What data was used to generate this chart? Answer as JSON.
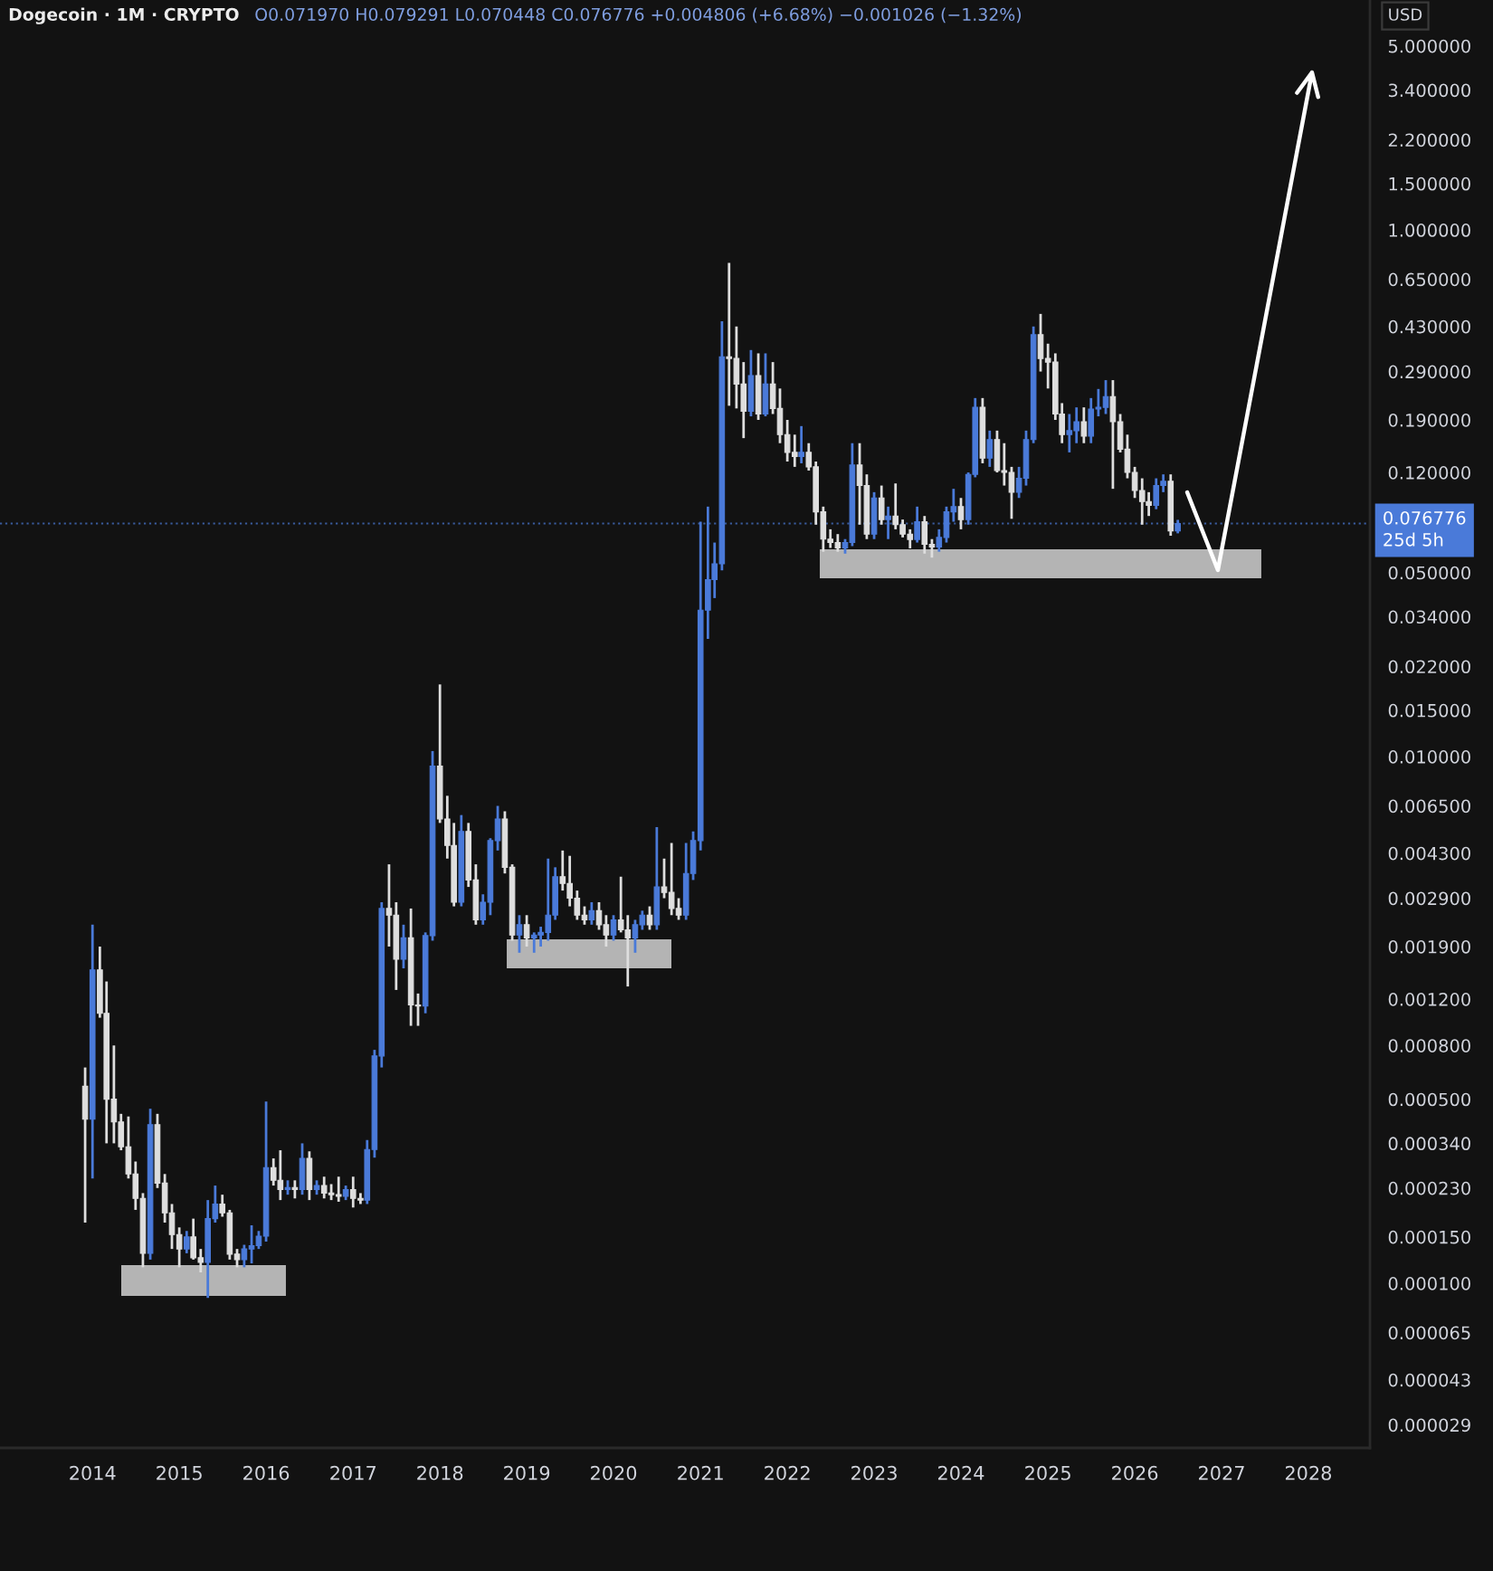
{
  "chart_data": {
    "type": "candlestick",
    "title": "Dogecoin · 1M · CRYPTO",
    "subtitle": "O0.071970 H0.079291 L0.070448 C0.076776 +0.004806 (+6.68%) −0.001026 (−1.32%)",
    "ylabel": "USD",
    "x": [
      "2013-12",
      "2014-01",
      "2014-02",
      "2014-03",
      "2014-04",
      "2014-05",
      "2014-06",
      "2014-07",
      "2014-08",
      "2014-09",
      "2014-10",
      "2014-11",
      "2014-12",
      "2015-01",
      "2015-02",
      "2015-03",
      "2015-04",
      "2015-05",
      "2015-06",
      "2015-07",
      "2015-08",
      "2015-09",
      "2015-10",
      "2015-11",
      "2015-12",
      "2016-01",
      "2016-02",
      "2016-03",
      "2016-04",
      "2016-05",
      "2016-06",
      "2016-07",
      "2016-08",
      "2016-09",
      "2016-10",
      "2016-11",
      "2016-12",
      "2017-01",
      "2017-02",
      "2017-03",
      "2017-04",
      "2017-05",
      "2017-06",
      "2017-07",
      "2017-08",
      "2017-09",
      "2017-10",
      "2017-11",
      "2017-12",
      "2018-01",
      "2018-02",
      "2018-03",
      "2018-04",
      "2018-05",
      "2018-06",
      "2018-07",
      "2018-08",
      "2018-09",
      "2018-10",
      "2018-11",
      "2018-12",
      "2019-01",
      "2019-02",
      "2019-03",
      "2019-04",
      "2019-05",
      "2019-06",
      "2019-07",
      "2019-08",
      "2019-09",
      "2019-10",
      "2019-11",
      "2019-12",
      "2020-01",
      "2020-02",
      "2020-03",
      "2020-04",
      "2020-05",
      "2020-06",
      "2020-07",
      "2020-08",
      "2020-09",
      "2020-10",
      "2020-11",
      "2020-12",
      "2021-01",
      "2021-02",
      "2021-03",
      "2021-04",
      "2021-05",
      "2021-06",
      "2021-07",
      "2021-08",
      "2021-09",
      "2021-10",
      "2021-11",
      "2021-12",
      "2022-01",
      "2022-02",
      "2022-03",
      "2022-04",
      "2022-05",
      "2022-06",
      "2022-07",
      "2022-08",
      "2022-09",
      "2022-10",
      "2022-11",
      "2022-12",
      "2023-01",
      "2023-02",
      "2023-03",
      "2023-04",
      "2023-05",
      "2023-06",
      "2023-07",
      "2023-08",
      "2023-09",
      "2023-10",
      "2023-11",
      "2023-12",
      "2024-01",
      "2024-02",
      "2024-03",
      "2024-04",
      "2024-05",
      "2024-06",
      "2024-07",
      "2024-08",
      "2024-09",
      "2024-10",
      "2024-11",
      "2024-12",
      "2025-01",
      "2025-02",
      "2025-03",
      "2025-04",
      "2025-05",
      "2025-06",
      "2025-07",
      "2025-08",
      "2025-09",
      "2025-10",
      "2025-11",
      "2025-12",
      "2026-01",
      "2026-02",
      "2026-03",
      "2026-04",
      "2026-05",
      "2026-06",
      "2026-07"
    ],
    "ohlc": [
      [
        0.00056,
        0.00066,
        0.00017,
        0.00042
      ],
      [
        0.00042,
        0.0023,
        0.00025,
        0.00155
      ],
      [
        0.00155,
        0.0019,
        0.00102,
        0.00106
      ],
      [
        0.00106,
        0.0014,
        0.00034,
        0.0005
      ],
      [
        0.0005,
        0.0008,
        0.00034,
        0.00041
      ],
      [
        0.00041,
        0.00044,
        0.00032,
        0.00033
      ],
      [
        0.00033,
        0.00043,
        0.00025,
        0.00026
      ],
      [
        0.00026,
        0.00029,
        0.00019,
        0.00021
      ],
      [
        0.00021,
        0.00022,
        0.000115,
        0.00013
      ],
      [
        0.00013,
        0.00046,
        0.000123,
        0.0004
      ],
      [
        0.0004,
        0.00044,
        0.00023,
        0.00024
      ],
      [
        0.00024,
        0.00026,
        0.00017,
        0.000185
      ],
      [
        0.000185,
        0.0002,
        0.000135,
        0.000153
      ],
      [
        0.000153,
        0.000163,
        0.000115,
        0.000135
      ],
      [
        0.000135,
        0.000158,
        0.00013,
        0.00015
      ],
      [
        0.00015,
        0.000176,
        0.000123,
        0.000125
      ],
      [
        0.000125,
        0.000135,
        0.00011,
        0.00012
      ],
      [
        0.00012,
        0.000207,
        8.8e-05,
        0.000176
      ],
      [
        0.000176,
        0.000235,
        0.00017,
        0.0002
      ],
      [
        0.0002,
        0.000217,
        0.000179,
        0.000185
      ],
      [
        0.000185,
        0.00019,
        0.000123,
        0.000129
      ],
      [
        0.000129,
        0.000135,
        0.000115,
        0.000123
      ],
      [
        0.000123,
        0.00014,
        0.000115,
        0.000135
      ],
      [
        0.000135,
        0.000166,
        0.000119,
        0.000139
      ],
      [
        0.000139,
        0.000158,
        0.000135,
        0.000151
      ],
      [
        0.000151,
        0.00049,
        0.000144,
        0.000275
      ],
      [
        0.000275,
        0.000298,
        0.000235,
        0.000246
      ],
      [
        0.000246,
        0.00032,
        0.000207,
        0.000227
      ],
      [
        0.000227,
        0.000246,
        0.000217,
        0.000231
      ],
      [
        0.000231,
        0.000246,
        0.00021,
        0.000227
      ],
      [
        0.000227,
        0.00034,
        0.000217,
        0.000298
      ],
      [
        0.000298,
        0.000317,
        0.000207,
        0.000227
      ],
      [
        0.000227,
        0.000246,
        0.000217,
        0.000235
      ],
      [
        0.000235,
        0.000254,
        0.00021,
        0.00022
      ],
      [
        0.00022,
        0.000238,
        0.000207,
        0.000217
      ],
      [
        0.000217,
        0.000254,
        0.000204,
        0.000214
      ],
      [
        0.000214,
        0.000235,
        0.000207,
        0.000227
      ],
      [
        0.000227,
        0.000254,
        0.000194,
        0.00021
      ],
      [
        0.00021,
        0.00022,
        0.0002,
        0.000207
      ],
      [
        0.000207,
        0.00035,
        0.0002,
        0.000322
      ],
      [
        0.000322,
        0.00077,
        0.0003,
        0.00073
      ],
      [
        0.00073,
        0.0028,
        0.00066,
        0.00265
      ],
      [
        0.00265,
        0.0039,
        0.0019,
        0.0025
      ],
      [
        0.0025,
        0.0028,
        0.0013,
        0.0017
      ],
      [
        0.0017,
        0.0023,
        0.00157,
        0.00205
      ],
      [
        0.00205,
        0.00265,
        0.00095,
        0.00114
      ],
      [
        0.00114,
        0.00126,
        0.00095,
        0.00113
      ],
      [
        0.00113,
        0.00215,
        0.00106,
        0.00209
      ],
      [
        0.00209,
        0.0105,
        0.002,
        0.0092
      ],
      [
        0.0092,
        0.0188,
        0.0056,
        0.0058
      ],
      [
        0.0058,
        0.0071,
        0.0041,
        0.0046
      ],
      [
        0.0046,
        0.0056,
        0.0027,
        0.0028
      ],
      [
        0.0028,
        0.006,
        0.0027,
        0.0052
      ],
      [
        0.0052,
        0.0056,
        0.0032,
        0.0034
      ],
      [
        0.0034,
        0.0039,
        0.0023,
        0.0024
      ],
      [
        0.0024,
        0.003,
        0.0023,
        0.0028
      ],
      [
        0.0028,
        0.0049,
        0.0025,
        0.0048
      ],
      [
        0.0048,
        0.0065,
        0.0044,
        0.0058
      ],
      [
        0.0058,
        0.0062,
        0.0036,
        0.0038
      ],
      [
        0.0038,
        0.0039,
        0.002,
        0.0021
      ],
      [
        0.0021,
        0.0025,
        0.0018,
        0.0023
      ],
      [
        0.0023,
        0.0025,
        0.0019,
        0.00205
      ],
      [
        0.00205,
        0.00215,
        0.0018,
        0.0021
      ],
      [
        0.0021,
        0.00226,
        0.0019,
        0.00215
      ],
      [
        0.00215,
        0.0041,
        0.002,
        0.0025
      ],
      [
        0.0025,
        0.0038,
        0.0024,
        0.0035
      ],
      [
        0.0035,
        0.0044,
        0.0031,
        0.0033
      ],
      [
        0.0033,
        0.0042,
        0.0027,
        0.0029
      ],
      [
        0.0029,
        0.0031,
        0.0024,
        0.0025
      ],
      [
        0.0025,
        0.0027,
        0.0023,
        0.0024
      ],
      [
        0.0024,
        0.0028,
        0.0023,
        0.0026
      ],
      [
        0.0026,
        0.0028,
        0.0022,
        0.0023
      ],
      [
        0.0023,
        0.0025,
        0.0019,
        0.0021
      ],
      [
        0.0021,
        0.0025,
        0.002,
        0.0024
      ],
      [
        0.0024,
        0.0035,
        0.00215,
        0.0022
      ],
      [
        0.0022,
        0.0025,
        0.00134,
        0.00205
      ],
      [
        0.00205,
        0.0024,
        0.0018,
        0.0023
      ],
      [
        0.0023,
        0.0026,
        0.0022,
        0.0025
      ],
      [
        0.0025,
        0.0027,
        0.0022,
        0.0023
      ],
      [
        0.0023,
        0.0054,
        0.0022,
        0.0032
      ],
      [
        0.0032,
        0.0041,
        0.0029,
        0.00305
      ],
      [
        0.00305,
        0.0047,
        0.0025,
        0.00265
      ],
      [
        0.00265,
        0.0029,
        0.0024,
        0.0025
      ],
      [
        0.0025,
        0.0047,
        0.0024,
        0.0036
      ],
      [
        0.0036,
        0.0052,
        0.0034,
        0.0048
      ],
      [
        0.0048,
        0.078,
        0.0044,
        0.036
      ],
      [
        0.036,
        0.089,
        0.028,
        0.047
      ],
      [
        0.047,
        0.065,
        0.04,
        0.054
      ],
      [
        0.054,
        0.45,
        0.051,
        0.33
      ],
      [
        0.33,
        0.75,
        0.215,
        0.325
      ],
      [
        0.325,
        0.43,
        0.21,
        0.26
      ],
      [
        0.26,
        0.315,
        0.162,
        0.205
      ],
      [
        0.205,
        0.35,
        0.196,
        0.28
      ],
      [
        0.28,
        0.34,
        0.19,
        0.2
      ],
      [
        0.2,
        0.34,
        0.196,
        0.26
      ],
      [
        0.26,
        0.315,
        0.2,
        0.21
      ],
      [
        0.21,
        0.25,
        0.155,
        0.167
      ],
      [
        0.167,
        0.19,
        0.132,
        0.143
      ],
      [
        0.143,
        0.167,
        0.126,
        0.138
      ],
      [
        0.138,
        0.18,
        0.13,
        0.143
      ],
      [
        0.143,
        0.155,
        0.122,
        0.126
      ],
      [
        0.126,
        0.132,
        0.076,
        0.085
      ],
      [
        0.085,
        0.089,
        0.06,
        0.067
      ],
      [
        0.067,
        0.073,
        0.062,
        0.065
      ],
      [
        0.065,
        0.07,
        0.06,
        0.062
      ],
      [
        0.062,
        0.067,
        0.059,
        0.065
      ],
      [
        0.065,
        0.155,
        0.063,
        0.128
      ],
      [
        0.128,
        0.155,
        0.076,
        0.107
      ],
      [
        0.107,
        0.118,
        0.067,
        0.07
      ],
      [
        0.07,
        0.101,
        0.067,
        0.096
      ],
      [
        0.096,
        0.107,
        0.076,
        0.0795
      ],
      [
        0.0795,
        0.089,
        0.067,
        0.082
      ],
      [
        0.082,
        0.109,
        0.073,
        0.076
      ],
      [
        0.076,
        0.0795,
        0.068,
        0.07
      ],
      [
        0.07,
        0.073,
        0.0618,
        0.0668
      ],
      [
        0.0668,
        0.089,
        0.065,
        0.078
      ],
      [
        0.078,
        0.082,
        0.059,
        0.064
      ],
      [
        0.064,
        0.067,
        0.057,
        0.0625
      ],
      [
        0.0625,
        0.073,
        0.06,
        0.068
      ],
      [
        0.068,
        0.089,
        0.065,
        0.085
      ],
      [
        0.085,
        0.104,
        0.078,
        0.089
      ],
      [
        0.089,
        0.096,
        0.073,
        0.0795
      ],
      [
        0.0795,
        0.12,
        0.076,
        0.118
      ],
      [
        0.118,
        0.23,
        0.115,
        0.212
      ],
      [
        0.212,
        0.23,
        0.13,
        0.136
      ],
      [
        0.136,
        0.173,
        0.126,
        0.16
      ],
      [
        0.16,
        0.173,
        0.12,
        0.122
      ],
      [
        0.122,
        0.155,
        0.107,
        0.12
      ],
      [
        0.12,
        0.126,
        0.08,
        0.101
      ],
      [
        0.101,
        0.126,
        0.096,
        0.114
      ],
      [
        0.114,
        0.173,
        0.107,
        0.16
      ],
      [
        0.16,
        0.43,
        0.155,
        0.4
      ],
      [
        0.4,
        0.48,
        0.29,
        0.325
      ],
      [
        0.325,
        0.37,
        0.25,
        0.315
      ],
      [
        0.315,
        0.34,
        0.19,
        0.2
      ],
      [
        0.2,
        0.22,
        0.155,
        0.167
      ],
      [
        0.167,
        0.2,
        0.143,
        0.173
      ],
      [
        0.173,
        0.212,
        0.155,
        0.187
      ],
      [
        0.187,
        0.212,
        0.155,
        0.165
      ],
      [
        0.165,
        0.23,
        0.155,
        0.209
      ],
      [
        0.209,
        0.249,
        0.196,
        0.212
      ],
      [
        0.212,
        0.269,
        0.2,
        0.233
      ],
      [
        0.233,
        0.269,
        0.104,
        0.187
      ],
      [
        0.187,
        0.2,
        0.143,
        0.147
      ],
      [
        0.147,
        0.167,
        0.114,
        0.12
      ],
      [
        0.12,
        0.126,
        0.096,
        0.1025
      ],
      [
        0.1025,
        0.114,
        0.076,
        0.093
      ],
      [
        0.093,
        0.101,
        0.082,
        0.09
      ],
      [
        0.09,
        0.114,
        0.087,
        0.107
      ],
      [
        0.107,
        0.118,
        0.101,
        0.111
      ],
      [
        0.111,
        0.118,
        0.069,
        0.07197
      ],
      [
        0.07197,
        0.079291,
        0.070448,
        0.076776
      ]
    ],
    "colors": [
      "#dedede",
      "#4a7ad9",
      "#dedede",
      "#dedede",
      "#dedede",
      "#dedede",
      "#dedede",
      "#dedede",
      "#dedede",
      "#4a7ad9",
      "#dedede",
      "#dedede",
      "#dedede",
      "#dedede",
      "#4a7ad9",
      "#dedede",
      "#dedede",
      "#4a7ad9",
      "#4a7ad9",
      "#dedede",
      "#dedede",
      "#dedede",
      "#4a7ad9",
      "#4a7ad9",
      "#4a7ad9",
      "#4a7ad9",
      "#dedede",
      "#dedede",
      "#4a7ad9",
      "#dedede",
      "#4a7ad9",
      "#dedede",
      "#4a7ad9",
      "#dedede",
      "#dedede",
      "#dedede",
      "#4a7ad9",
      "#dedede",
      "#dedede",
      "#4a7ad9",
      "#4a7ad9",
      "#4a7ad9",
      "#dedede",
      "#dedede",
      "#4a7ad9",
      "#dedede",
      "#dedede",
      "#4a7ad9",
      "#4a7ad9",
      "#dedede",
      "#dedede",
      "#dedede",
      "#4a7ad9",
      "#dedede",
      "#dedede",
      "#4a7ad9",
      "#4a7ad9",
      "#4a7ad9",
      "#dedede",
      "#dedede",
      "#4a7ad9",
      "#dedede",
      "#4a7ad9",
      "#4a7ad9",
      "#4a7ad9",
      "#4a7ad9",
      "#dedede",
      "#dedede",
      "#dedede",
      "#dedede",
      "#4a7ad9",
      "#dedede",
      "#dedede",
      "#4a7ad9",
      "#dedede",
      "#dedede",
      "#4a7ad9",
      "#4a7ad9",
      "#dedede",
      "#4a7ad9",
      "#dedede",
      "#dedede",
      "#dedede",
      "#4a7ad9",
      "#4a7ad9",
      "#4a7ad9",
      "#4a7ad9",
      "#4a7ad9",
      "#4a7ad9",
      "#dedede",
      "#dedede",
      "#dedede",
      "#4a7ad9",
      "#dedede",
      "#4a7ad9",
      "#dedede",
      "#dedede",
      "#dedede",
      "#dedede",
      "#4a7ad9",
      "#dedede",
      "#dedede",
      "#dedede",
      "#dedede",
      "#dedede",
      "#4a7ad9",
      "#4a7ad9",
      "#dedede",
      "#dedede",
      "#4a7ad9",
      "#dedede",
      "#4a7ad9",
      "#dedede",
      "#dedede",
      "#dedede",
      "#4a7ad9",
      "#dedede",
      "#dedede",
      "#4a7ad9",
      "#4a7ad9",
      "#4a7ad9",
      "#dedede",
      "#4a7ad9",
      "#4a7ad9",
      "#dedede",
      "#4a7ad9",
      "#dedede",
      "#dedede",
      "#dedede",
      "#4a7ad9",
      "#4a7ad9",
      "#4a7ad9",
      "#dedede",
      "#dedede",
      "#dedede",
      "#dedede",
      "#4a7ad9",
      "#4a7ad9",
      "#dedede",
      "#4a7ad9",
      "#4a7ad9",
      "#4a7ad9",
      "#dedede",
      "#dedede",
      "#dedede",
      "#dedede",
      "#dedede",
      "#dedede",
      "#4a7ad9",
      "#4a7ad9",
      "#dedede",
      "#4a7ad9"
    ],
    "xlim": [
      "2012-12-08",
      "2028-09-16"
    ],
    "xticks": [
      "2014",
      "2015",
      "2016",
      "2017",
      "2018",
      "2019",
      "2020",
      "2021",
      "2022",
      "2023",
      "2024",
      "2025",
      "2026",
      "2027",
      "2028"
    ],
    "ylim": [
      2.37e-05,
      7.47
    ],
    "yticks": [
      {
        "value": 5,
        "label": "5.000000"
      },
      {
        "value": 3.4,
        "label": "3.400000"
      },
      {
        "value": 2.2,
        "label": "2.200000"
      },
      {
        "value": 1.5,
        "label": "1.500000"
      },
      {
        "value": 1,
        "label": "1.000000"
      },
      {
        "value": 0.65,
        "label": "0.650000"
      },
      {
        "value": 0.43,
        "label": "0.430000"
      },
      {
        "value": 0.29,
        "label": "0.290000"
      },
      {
        "value": 0.19,
        "label": "0.190000"
      },
      {
        "value": 0.12,
        "label": "0.120000"
      },
      {
        "value": 0.05,
        "label": "0.050000"
      },
      {
        "value": 0.034,
        "label": "0.034000"
      },
      {
        "value": 0.022,
        "label": "0.022000"
      },
      {
        "value": 0.015,
        "label": "0.015000"
      },
      {
        "value": 0.01,
        "label": "0.010000"
      },
      {
        "value": 0.0065,
        "label": "0.006500"
      },
      {
        "value": 0.0043,
        "label": "0.004300"
      },
      {
        "value": 0.0029,
        "label": "0.002900"
      },
      {
        "value": 0.0019,
        "label": "0.001900"
      },
      {
        "value": 0.0012,
        "label": "0.001200"
      },
      {
        "value": 0.0008,
        "label": "0.000800"
      },
      {
        "value": 0.0005,
        "label": "0.000500"
      },
      {
        "value": 0.00034,
        "label": "0.000340"
      },
      {
        "value": 0.00023,
        "label": "0.000230"
      },
      {
        "value": 0.00015,
        "label": "0.000150"
      },
      {
        "value": 0.0001,
        "label": "0.000100"
      },
      {
        "value": 6.5e-05,
        "label": "0.000065"
      },
      {
        "value": 4.3e-05,
        "label": "0.000043"
      },
      {
        "value": 2.9e-05,
        "label": "0.000029"
      }
    ],
    "log": true,
    "ref_lines": [
      {
        "axis": "y",
        "value": 0.076776,
        "label": "0.076776\n25d 5h",
        "color": "#4a7ad9",
        "line_style": "dotted"
      }
    ]
  }
}
